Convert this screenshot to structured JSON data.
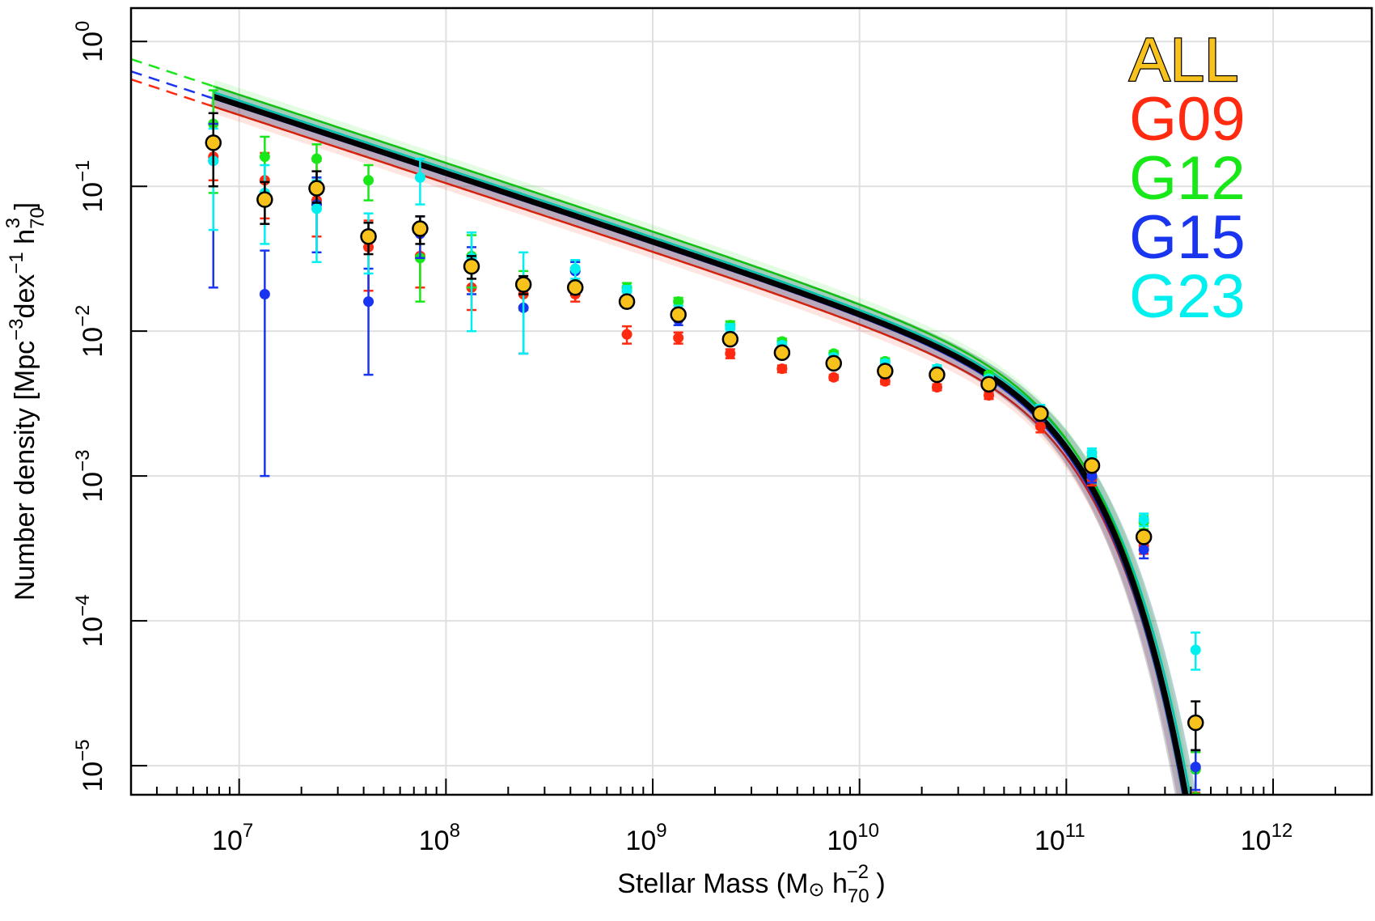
{
  "chart_data": {
    "type": "scatter",
    "title": "",
    "xlabel": {
      "pre": "Stellar Mass (M",
      "sun": "⊙",
      "mid": " h",
      "sub": "70",
      "sup": "−2",
      "post": " )"
    },
    "ylabel": {
      "pre": "Number density [Mpc",
      "sup1": "−3",
      "mid": "dex",
      "sup2": "−1",
      "h": " h",
      "sub": "70",
      "sup3": "3",
      "post": " ]"
    },
    "x_scale": "log",
    "y_scale": "log",
    "xlim": [
      3000000,
      3000000000000
    ],
    "ylim": [
      6.3e-06,
      1.7
    ],
    "grid": true,
    "legend_position": "top-right",
    "x_ticks": [
      {
        "value": 10000000,
        "base": "10",
        "exp": "7"
      },
      {
        "value": 100000000,
        "base": "10",
        "exp": "8"
      },
      {
        "value": 1000000000,
        "base": "10",
        "exp": "9"
      },
      {
        "value": 10000000000,
        "base": "10",
        "exp": "10"
      },
      {
        "value": 100000000000,
        "base": "10",
        "exp": "11"
      },
      {
        "value": 1000000000000,
        "base": "10",
        "exp": "12"
      }
    ],
    "y_ticks": [
      {
        "value": 1,
        "base": "10",
        "exp": "0"
      },
      {
        "value": 0.1,
        "base": "10",
        "exp": "−1"
      },
      {
        "value": 0.01,
        "base": "10",
        "exp": "−2"
      },
      {
        "value": 0.001,
        "base": "10",
        "exp": "−3"
      },
      {
        "value": 0.0001,
        "base": "10",
        "exp": "−4"
      },
      {
        "value": 1e-05,
        "base": "10",
        "exp": "−5"
      }
    ],
    "x": [
      7500000,
      13300000,
      23700000,
      42200000,
      75000000,
      133000000,
      237000000,
      422000000,
      750000000,
      1330000000,
      2370000000,
      4220000000,
      7500000000,
      13300000000,
      23700000000,
      42200000000,
      75000000000,
      133000000000,
      237000000000,
      422000000000
    ],
    "series": [
      {
        "name": "G09",
        "color": "#ff2a10",
        "y": [
          0.16,
          0.11,
          0.08,
          0.038,
          0.033,
          0.02,
          0.018,
          0.018,
          0.0095,
          0.009,
          0.007,
          0.0055,
          0.0048,
          0.0045,
          0.0041,
          0.0036,
          0.0022,
          0.00095,
          0.00033,
          9.5e-06
        ],
        "err_lo": [
          0.05,
          0.05,
          0.035,
          0.019,
          0.013,
          0.006,
          0.004,
          0.002,
          0.0013,
          0.0008,
          0.0005,
          0.0003,
          0.0002,
          0.0002,
          0.0002,
          0.0002,
          0.0002,
          9e-05,
          4e-05,
          3e-06
        ],
        "err_hi": [
          0.06,
          0.06,
          0.07,
          0.02,
          0.013,
          0.006,
          0.004,
          0.002,
          0.0013,
          0.0008,
          0.0005,
          0.0003,
          0.0002,
          0.0002,
          0.0002,
          0.0002,
          0.0002,
          9e-05,
          4e-05,
          3e-06
        ],
        "fit_logphi1": -2.69,
        "fit_logphi2": -2.59,
        "fit_alpha1": -0.35,
        "fit_alpha2": -1.47,
        "fit_logmstar": 10.66
      },
      {
        "name": "G12",
        "color": "#18e818",
        "y": [
          0.27,
          0.16,
          0.155,
          0.11,
          0.032,
          0.033,
          0.02,
          0.026,
          0.02,
          0.016,
          0.011,
          0.0085,
          0.007,
          0.0062,
          0.0055,
          0.005,
          0.0028,
          0.00135,
          0.00048,
          9.4e-06
        ],
        "err_lo": [
          0.18,
          0.08,
          0.04,
          0.03,
          0.016,
          0.013,
          0.006,
          0.004,
          0.0015,
          0.001,
          0.0007,
          0.0004,
          0.0003,
          0.0003,
          0.0003,
          0.0002,
          0.0002,
          0.0001,
          5e-05,
          3e-06
        ],
        "err_hi": [
          0.19,
          0.06,
          0.04,
          0.03,
          0.016,
          0.013,
          0.006,
          0.004,
          0.0015,
          0.001,
          0.0007,
          0.0004,
          0.0003,
          0.0003,
          0.0003,
          0.0002,
          0.0002,
          0.0001,
          5e-05,
          3e-06
        ],
        "fit_logphi1": -2.57,
        "fit_logphi2": -2.45,
        "fit_alpha1": -0.35,
        "fit_alpha2": -1.47,
        "fit_logmstar": 10.66
      },
      {
        "name": "G15",
        "color": "#1a35f0",
        "y": [
          0.15,
          0.018,
          0.075,
          0.016,
          0.047,
          0.028,
          0.0145,
          0.026,
          0.016,
          0.012,
          0.0088,
          0.007,
          0.006,
          0.0054,
          0.005,
          0.0042,
          0.0026,
          0.001,
          0.00031,
          9.8e-06
        ],
        "err_lo": [
          0.13,
          0.017,
          0.04,
          0.011,
          0.015,
          0.01,
          0.0075,
          0.004,
          0.0015,
          0.001,
          0.0007,
          0.0004,
          0.0003,
          0.0003,
          0.0003,
          0.0002,
          0.0002,
          0.0001,
          4e-05,
          3e-06
        ],
        "err_hi": [
          0.12,
          0.018,
          0.04,
          0.011,
          0.015,
          0.01,
          0.0075,
          0.004,
          0.0015,
          0.001,
          0.0007,
          0.0004,
          0.0003,
          0.0003,
          0.0003,
          0.0002,
          0.0002,
          0.0001,
          4e-05,
          3e-06
        ],
        "fit_logphi1": -2.64,
        "fit_logphi2": -2.53,
        "fit_alpha1": -0.35,
        "fit_alpha2": -1.47,
        "fit_logmstar": 10.65
      },
      {
        "name": "G23",
        "color": "#00f0f0",
        "y": [
          0.15,
          0.09,
          0.07,
          0.045,
          0.115,
          0.032,
          0.021,
          0.027,
          0.019,
          0.014,
          0.0105,
          0.008,
          0.0066,
          0.006,
          0.0055,
          0.0047,
          0.0029,
          0.00145,
          0.0005,
          6.3e-05
        ],
        "err_lo": [
          0.1,
          0.05,
          0.04,
          0.02,
          0.04,
          0.022,
          0.014,
          0.004,
          0.0015,
          0.001,
          0.0007,
          0.0004,
          0.0003,
          0.0003,
          0.0003,
          0.0002,
          0.0002,
          0.0001,
          5e-05,
          1.7e-05
        ],
        "err_hi": [
          0.1,
          0.05,
          0.04,
          0.02,
          0.04,
          0.016,
          0.014,
          0.004,
          0.0015,
          0.001,
          0.0007,
          0.0004,
          0.0003,
          0.0003,
          0.0003,
          0.0002,
          0.0002,
          0.0001,
          5e-05,
          2e-05
        ],
        "fit_logphi1": -2.61,
        "fit_logphi2": -2.5,
        "fit_alpha1": -0.35,
        "fit_alpha2": -1.47,
        "fit_logmstar": 10.68
      },
      {
        "name": "ALL",
        "color": "#f7c21c",
        "edge": "#000000",
        "y": [
          0.2,
          0.081,
          0.097,
          0.045,
          0.051,
          0.028,
          0.021,
          0.02,
          0.016,
          0.013,
          0.0088,
          0.0071,
          0.006,
          0.0053,
          0.005,
          0.0043,
          0.0027,
          0.00118,
          0.00038,
          1.98e-05
        ],
        "err_lo": [
          0.1,
          0.026,
          0.02,
          0.011,
          0.011,
          0.005,
          0.003,
          0.002,
          0.0012,
          0.0008,
          0.0005,
          0.0003,
          0.0002,
          0.0002,
          0.0002,
          0.0002,
          0.00015,
          8e-05,
          3e-05,
          7e-06
        ],
        "err_hi": [
          0.12,
          0.026,
          0.03,
          0.011,
          0.011,
          0.005,
          0.003,
          0.002,
          0.0012,
          0.0008,
          0.0005,
          0.0003,
          0.0002,
          0.0002,
          0.0002,
          0.0002,
          0.00015,
          8e-05,
          3e-05,
          8e-06
        ],
        "fit_logphi1": -2.62,
        "fit_logphi2": -2.52,
        "fit_alpha1": -0.35,
        "fit_alpha2": -1.47,
        "fit_logmstar": 10.66
      }
    ]
  }
}
